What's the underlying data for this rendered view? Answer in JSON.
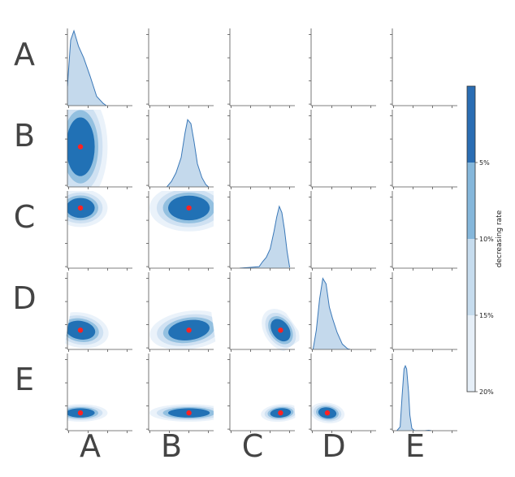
{
  "chart_data": {
    "type": "pairplot",
    "variables": [
      "A",
      "B",
      "C",
      "D",
      "E"
    ],
    "diagonal_densities": [
      {
        "variable": "A",
        "curve": [
          [
            0.0,
            0.25
          ],
          [
            0.05,
            0.85
          ],
          [
            0.1,
            0.97
          ],
          [
            0.17,
            0.77
          ],
          [
            0.25,
            0.62
          ],
          [
            0.35,
            0.38
          ],
          [
            0.45,
            0.12
          ],
          [
            0.55,
            0.03
          ],
          [
            0.6,
            0.0
          ]
        ],
        "extent": [
          0.0,
          0.6
        ]
      },
      {
        "variable": "B",
        "curve": [
          [
            0.28,
            0.0
          ],
          [
            0.35,
            0.07
          ],
          [
            0.42,
            0.18
          ],
          [
            0.5,
            0.38
          ],
          [
            0.56,
            0.7
          ],
          [
            0.6,
            0.87
          ],
          [
            0.65,
            0.82
          ],
          [
            0.7,
            0.58
          ],
          [
            0.75,
            0.3
          ],
          [
            0.82,
            0.12
          ],
          [
            0.88,
            0.03
          ],
          [
            0.92,
            0.0
          ]
        ],
        "extent": [
          0.28,
          0.92
        ]
      },
      {
        "variable": "C",
        "curve": [
          [
            0.15,
            0.0
          ],
          [
            0.3,
            0.01
          ],
          [
            0.45,
            0.02
          ],
          [
            0.5,
            0.08
          ],
          [
            0.56,
            0.14
          ],
          [
            0.62,
            0.25
          ],
          [
            0.68,
            0.48
          ],
          [
            0.72,
            0.66
          ],
          [
            0.76,
            0.8
          ],
          [
            0.8,
            0.72
          ],
          [
            0.84,
            0.5
          ],
          [
            0.88,
            0.22
          ],
          [
            0.92,
            0.01
          ]
        ],
        "extent": [
          0.15,
          0.92
        ]
      },
      {
        "variable": "D",
        "curve": [
          [
            0.03,
            0.0
          ],
          [
            0.08,
            0.25
          ],
          [
            0.13,
            0.65
          ],
          [
            0.18,
            0.92
          ],
          [
            0.23,
            0.85
          ],
          [
            0.28,
            0.55
          ],
          [
            0.33,
            0.4
          ],
          [
            0.4,
            0.22
          ],
          [
            0.48,
            0.07
          ],
          [
            0.56,
            0.01
          ],
          [
            0.6,
            0.0
          ]
        ],
        "extent": [
          0.03,
          0.6
        ]
      },
      {
        "variable": "E",
        "curve": [
          [
            0.07,
            0.0
          ],
          [
            0.12,
            0.05
          ],
          [
            0.15,
            0.45
          ],
          [
            0.18,
            0.8
          ],
          [
            0.2,
            0.84
          ],
          [
            0.22,
            0.8
          ],
          [
            0.25,
            0.5
          ],
          [
            0.27,
            0.2
          ],
          [
            0.3,
            0.03
          ],
          [
            0.34,
            0.0
          ],
          [
            0.5,
            0.0
          ],
          [
            0.56,
            0.005
          ],
          [
            0.6,
            0.0
          ]
        ],
        "extent": [
          0.07,
          0.6
        ]
      }
    ],
    "kde_contours": [
      {
        "row": "B",
        "col": "A",
        "mean": [
          0.2,
          0.52
        ],
        "rx": 0.22,
        "ry": 0.38,
        "angle": 0
      },
      {
        "row": "C",
        "col": "A",
        "mean": [
          0.2,
          0.78
        ],
        "rx": 0.22,
        "ry": 0.13,
        "angle": 0
      },
      {
        "row": "C",
        "col": "B",
        "mean": [
          0.62,
          0.78
        ],
        "rx": 0.32,
        "ry": 0.16,
        "angle": 0
      },
      {
        "row": "D",
        "col": "A",
        "mean": [
          0.2,
          0.25
        ],
        "rx": 0.23,
        "ry": 0.12,
        "angle": 10
      },
      {
        "row": "D",
        "col": "B",
        "mean": [
          0.62,
          0.25
        ],
        "rx": 0.32,
        "ry": 0.13,
        "angle": -8
      },
      {
        "row": "D",
        "col": "C",
        "mean": [
          0.78,
          0.25
        ],
        "rx": 0.13,
        "ry": 0.16,
        "angle": -35
      },
      {
        "row": "E",
        "col": "A",
        "mean": [
          0.2,
          0.23
        ],
        "rx": 0.22,
        "ry": 0.06,
        "angle": 0
      },
      {
        "row": "E",
        "col": "B",
        "mean": [
          0.62,
          0.23
        ],
        "rx": 0.32,
        "ry": 0.06,
        "angle": 0
      },
      {
        "row": "E",
        "col": "C",
        "mean": [
          0.78,
          0.23
        ],
        "rx": 0.16,
        "ry": 0.06,
        "angle": -5
      },
      {
        "row": "E",
        "col": "D",
        "mean": [
          0.25,
          0.23
        ],
        "rx": 0.14,
        "ry": 0.07,
        "angle": 8
      }
    ],
    "colorbar": {
      "label": "decreasing rate",
      "ticks": [
        "5%",
        "10%",
        "15%",
        "20%"
      ],
      "levels": [
        "#2a6db3",
        "#85b7db",
        "#c6dcee",
        "#e6eff8"
      ]
    },
    "fill_colors": {
      "diag_fill": "#c4d9ec",
      "diag_line": "#3a78b8",
      "contour": [
        "#eaf2fa",
        "#cfe1f2",
        "#93c0e0",
        "#2171b5"
      ],
      "mean_marker": "#ff2222"
    }
  }
}
